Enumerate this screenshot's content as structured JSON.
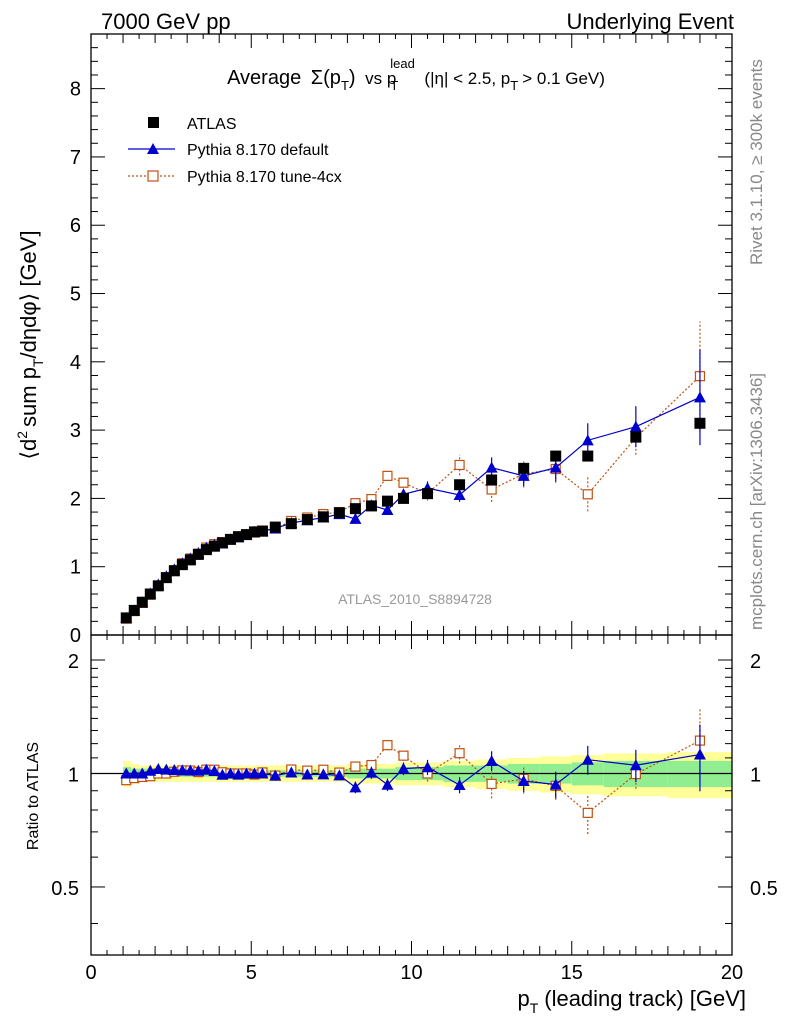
{
  "header": {
    "energy": "7000 GeV pp",
    "process": "Underlying Event",
    "rivet": "Rivet 3.1.10, ≥ 300k events",
    "site": "mcplots.cern.ch [arXiv:1306.3436]",
    "analysis_id": "ATLAS_2010_S8894728"
  },
  "chart_data": {
    "type": "scatter",
    "title": {
      "average": "Average",
      "sigma": "Σ(p",
      "sub_T": "T",
      "close": ")",
      "vs": "vs p",
      "sup_lead": "lead",
      "cond_a": "(|η| < 2.5, p",
      "cond_b": "> 0.1 GeV)"
    },
    "xlabel": {
      "p": "p",
      "sub": "T",
      "rest": "(leading track) [GeV]"
    },
    "ylabel": {
      "a": "⟨d",
      "sup2": "2",
      "b": "sum p",
      "subT": "T",
      "c": "/dηdφ⟩ [GeV]"
    },
    "ratio_ylabel": "Ratio to ATLAS",
    "xlim": [
      0,
      20
    ],
    "ylim": [
      0,
      8.8
    ],
    "ratio_ylim": [
      0.33,
      2.33
    ],
    "x_ticks": [
      "0",
      "5",
      "10",
      "15",
      "20"
    ],
    "y_ticks": [
      "0",
      "1",
      "2",
      "3",
      "4",
      "5",
      "6",
      "7",
      "8"
    ],
    "ratio_ticks": [
      "0.5",
      "1",
      "2"
    ],
    "legend_position": "top-left",
    "series": [
      {
        "name": "ATLAS",
        "color": "#000000",
        "marker": "square",
        "points": [
          [
            1.1,
            0.25
          ],
          [
            1.35,
            0.36
          ],
          [
            1.6,
            0.48
          ],
          [
            1.85,
            0.6
          ],
          [
            2.1,
            0.72
          ],
          [
            2.35,
            0.84
          ],
          [
            2.6,
            0.94
          ],
          [
            2.85,
            1.03
          ],
          [
            3.1,
            1.1
          ],
          [
            3.35,
            1.18
          ],
          [
            3.6,
            1.25
          ],
          [
            3.85,
            1.3
          ],
          [
            4.1,
            1.35
          ],
          [
            4.35,
            1.4
          ],
          [
            4.6,
            1.44
          ],
          [
            4.85,
            1.47
          ],
          [
            5.1,
            1.51
          ],
          [
            5.35,
            1.52
          ],
          [
            5.75,
            1.58
          ],
          [
            6.25,
            1.63
          ],
          [
            6.75,
            1.69
          ],
          [
            7.25,
            1.73
          ],
          [
            7.75,
            1.79
          ],
          [
            8.25,
            1.85
          ],
          [
            8.75,
            1.89
          ],
          [
            9.25,
            1.96
          ],
          [
            9.75,
            2.0
          ],
          [
            10.5,
            2.07
          ],
          [
            11.5,
            2.2
          ],
          [
            12.5,
            2.27
          ],
          [
            13.5,
            2.44
          ],
          [
            14.5,
            2.62
          ],
          [
            15.5,
            2.62
          ],
          [
            17.0,
            2.9
          ],
          [
            19.0,
            3.1
          ]
        ]
      },
      {
        "name": "Pythia 8.170 default",
        "color": "#0000cc",
        "marker": "triangle",
        "points": [
          [
            1.1,
            0.25
          ],
          [
            1.35,
            0.36
          ],
          [
            1.6,
            0.48
          ],
          [
            1.85,
            0.61
          ],
          [
            2.1,
            0.74
          ],
          [
            2.35,
            0.86
          ],
          [
            2.6,
            0.96
          ],
          [
            2.85,
            1.05
          ],
          [
            3.1,
            1.12
          ],
          [
            3.35,
            1.2
          ],
          [
            3.6,
            1.28
          ],
          [
            3.85,
            1.32
          ],
          [
            4.1,
            1.34
          ],
          [
            4.35,
            1.4
          ],
          [
            4.6,
            1.43
          ],
          [
            4.85,
            1.47
          ],
          [
            5.1,
            1.51
          ],
          [
            5.35,
            1.52
          ],
          [
            5.75,
            1.56
          ],
          [
            6.25,
            1.64
          ],
          [
            6.75,
            1.68
          ],
          [
            7.25,
            1.72
          ],
          [
            7.75,
            1.77
          ],
          [
            8.25,
            1.7
          ],
          [
            8.75,
            1.9
          ],
          [
            9.25,
            1.83
          ],
          [
            9.75,
            2.06
          ],
          [
            10.5,
            2.15
          ],
          [
            11.5,
            2.05
          ],
          [
            12.5,
            2.45
          ],
          [
            13.5,
            2.33
          ],
          [
            14.5,
            2.45
          ],
          [
            15.5,
            2.85
          ],
          [
            17.0,
            3.05
          ],
          [
            19.0,
            3.48
          ]
        ],
        "errors": [
          0,
          0,
          0,
          0,
          0,
          0,
          0,
          0,
          0,
          0,
          0,
          0,
          0,
          0,
          0,
          0,
          0,
          0,
          0,
          0,
          0,
          0,
          0,
          0.06,
          0.07,
          0.07,
          0.08,
          0.1,
          0.1,
          0.15,
          0.15,
          0.2,
          0.25,
          0.3,
          0.7
        ]
      },
      {
        "name": "Pythia 8.170 tune-4cx",
        "color": "#c05010",
        "marker": "open-square",
        "points": [
          [
            1.1,
            0.24
          ],
          [
            1.35,
            0.35
          ],
          [
            1.6,
            0.47
          ],
          [
            1.85,
            0.59
          ],
          [
            2.1,
            0.72
          ],
          [
            2.35,
            0.84
          ],
          [
            2.6,
            0.95
          ],
          [
            2.85,
            1.05
          ],
          [
            3.1,
            1.12
          ],
          [
            3.35,
            1.19
          ],
          [
            3.6,
            1.28
          ],
          [
            3.85,
            1.33
          ],
          [
            4.1,
            1.36
          ],
          [
            4.35,
            1.4
          ],
          [
            4.6,
            1.44
          ],
          [
            4.85,
            1.47
          ],
          [
            5.1,
            1.5
          ],
          [
            5.35,
            1.53
          ],
          [
            5.75,
            1.56
          ],
          [
            6.25,
            1.67
          ],
          [
            6.75,
            1.72
          ],
          [
            7.25,
            1.77
          ],
          [
            7.75,
            1.8
          ],
          [
            8.25,
            1.93
          ],
          [
            8.75,
            1.99
          ],
          [
            9.25,
            2.33
          ],
          [
            9.75,
            2.23
          ],
          [
            10.5,
            2.07
          ],
          [
            11.5,
            2.49
          ],
          [
            12.5,
            2.13
          ],
          [
            13.5,
            2.36
          ],
          [
            14.5,
            2.43
          ],
          [
            15.5,
            2.06
          ],
          [
            17.0,
            2.89
          ],
          [
            19.0,
            3.79
          ]
        ],
        "errors": [
          0,
          0,
          0,
          0,
          0,
          0,
          0,
          0,
          0,
          0,
          0,
          0,
          0,
          0,
          0,
          0,
          0,
          0,
          0,
          0,
          0,
          0,
          0,
          0.05,
          0.06,
          0.07,
          0.07,
          0.1,
          0.15,
          0.18,
          0.2,
          0.2,
          0.25,
          0.25,
          0.8
        ]
      }
    ],
    "ratio_band_edges": [
      1.0,
      1.25,
      1.5,
      1.75,
      2.0,
      2.25,
      2.5,
      2.75,
      3.0,
      3.25,
      3.5,
      3.75,
      4.0,
      4.25,
      4.5,
      4.75,
      5.0,
      5.25,
      5.5,
      6.0,
      6.5,
      7.0,
      7.5,
      8.0,
      8.5,
      9.0,
      9.5,
      10.0,
      11.0,
      12.0,
      13.0,
      14.0,
      15.0,
      16.0,
      18.0,
      20.0
    ],
    "ratio_band_inner": [
      0.04,
      0.03,
      0.03,
      0.03,
      0.02,
      0.02,
      0.02,
      0.02,
      0.02,
      0.02,
      0.02,
      0.02,
      0.02,
      0.02,
      0.02,
      0.02,
      0.02,
      0.02,
      0.02,
      0.02,
      0.02,
      0.02,
      0.02,
      0.03,
      0.03,
      0.03,
      0.04,
      0.04,
      0.05,
      0.05,
      0.06,
      0.06,
      0.07,
      0.08,
      0.08
    ],
    "ratio_band_outer": [
      0.08,
      0.06,
      0.05,
      0.05,
      0.05,
      0.05,
      0.05,
      0.05,
      0.05,
      0.05,
      0.05,
      0.05,
      0.05,
      0.05,
      0.05,
      0.05,
      0.05,
      0.05,
      0.05,
      0.05,
      0.05,
      0.05,
      0.05,
      0.06,
      0.06,
      0.06,
      0.07,
      0.07,
      0.08,
      0.09,
      0.1,
      0.11,
      0.12,
      0.13,
      0.14
    ]
  }
}
